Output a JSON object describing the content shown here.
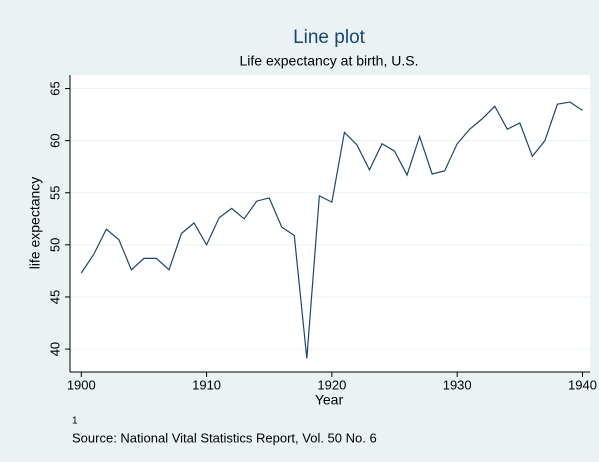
{
  "chart_data": {
    "type": "line",
    "title": "Line plot",
    "subtitle": "Life expectancy at birth, U.S.",
    "x_label": "Year",
    "y_label": "life expectancy",
    "note_marker": "1",
    "note": "Source:  National Vital Statistics Report, Vol. 50 No. 6",
    "x": [
      1900,
      1901,
      1902,
      1903,
      1904,
      1905,
      1906,
      1907,
      1908,
      1909,
      1910,
      1911,
      1912,
      1913,
      1914,
      1915,
      1916,
      1917,
      1918,
      1919,
      1920,
      1921,
      1922,
      1923,
      1924,
      1925,
      1926,
      1927,
      1928,
      1929,
      1930,
      1931,
      1932,
      1933,
      1934,
      1935,
      1936,
      1937,
      1938,
      1939,
      1940
    ],
    "series": [
      {
        "name": "life expectancy",
        "color": "#1a476f",
        "values": [
          47.3,
          49.1,
          51.5,
          50.5,
          47.6,
          48.7,
          48.7,
          47.6,
          51.1,
          52.1,
          50.0,
          52.6,
          53.5,
          52.5,
          54.2,
          54.5,
          51.7,
          50.9,
          39.1,
          54.7,
          54.1,
          60.8,
          59.6,
          57.2,
          59.7,
          59.0,
          56.7,
          60.4,
          56.8,
          57.1,
          59.7,
          61.1,
          62.1,
          63.3,
          61.1,
          61.7,
          58.5,
          60.0,
          63.5,
          63.7,
          62.9
        ]
      }
    ],
    "xlim": [
      1899.1,
      1940.6
    ],
    "ylim": [
      37.8,
      66.3
    ],
    "xticks": [
      1900,
      1910,
      1920,
      1930,
      1940
    ],
    "yticks": [
      40,
      45,
      50,
      55,
      60,
      65
    ],
    "grid": true
  }
}
